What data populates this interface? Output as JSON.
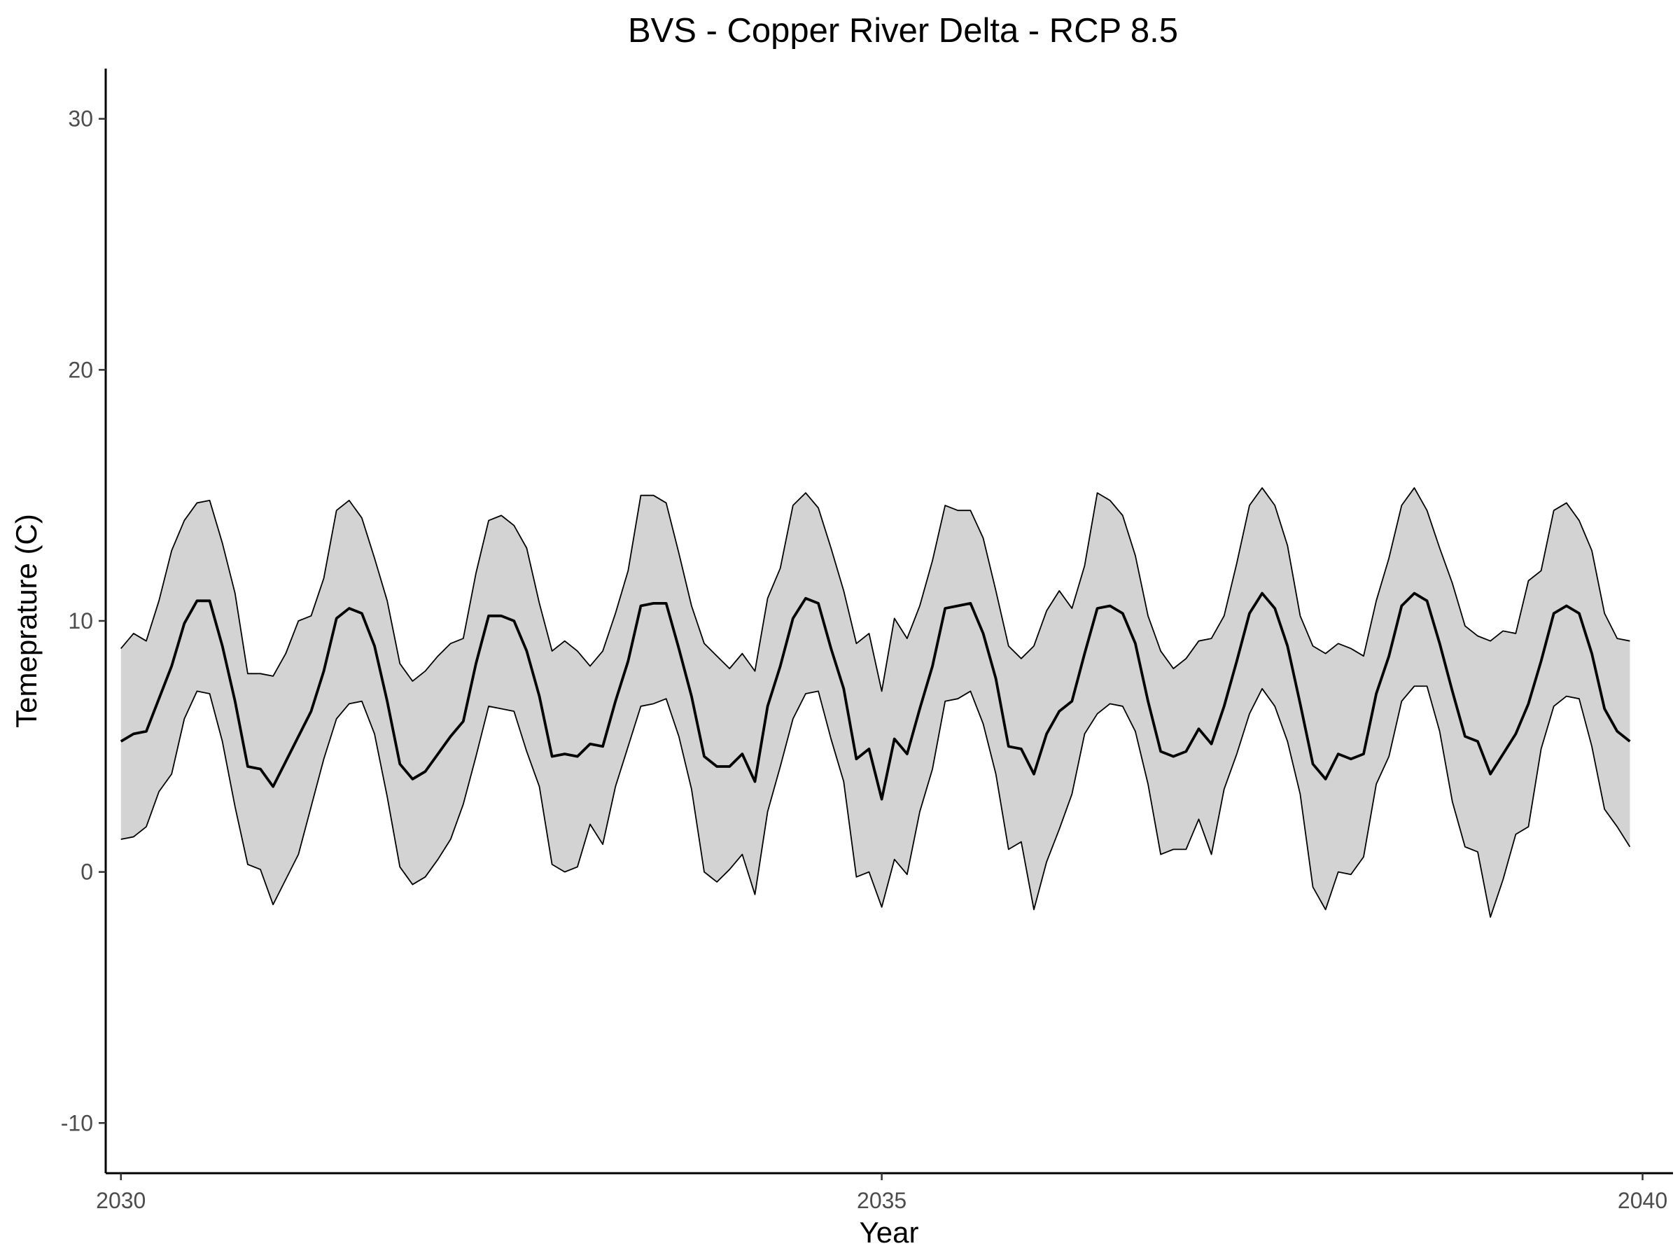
{
  "chart_data": {
    "type": "area",
    "title": "BVS - Copper River Delta - RCP 8.5",
    "xlabel": "Year",
    "ylabel": "Temeprature (C)",
    "xlim": [
      2029.9,
      2040.2
    ],
    "ylim": [
      -12,
      32
    ],
    "x_ticks": [
      2030,
      2035,
      2040
    ],
    "y_ticks": [
      -10,
      0,
      10,
      20,
      30
    ],
    "x_tick_labels": [
      "2030",
      "2035",
      "2040"
    ],
    "y_tick_labels": [
      "-10",
      "0",
      "10",
      "20",
      "30"
    ],
    "grid": false,
    "legend": "none",
    "colors": {
      "band": "#d3d3d3",
      "line": "#000000"
    },
    "x_start_year": 2030,
    "x_step_years": 0.083333,
    "series": [
      {
        "role": "mean",
        "values": [
          5.2,
          5.5,
          5.6,
          6.9,
          8.2,
          9.9,
          10.8,
          10.8,
          9.0,
          6.8,
          4.2,
          4.1,
          3.4,
          4.4,
          5.4,
          6.4,
          8.0,
          10.1,
          10.5,
          10.3,
          9.0,
          6.8,
          4.3,
          3.7,
          4.0,
          4.7,
          5.4,
          6.0,
          8.3,
          10.2,
          10.2,
          10.0,
          8.8,
          7.0,
          4.6,
          4.7,
          4.6,
          5.1,
          5.0,
          6.8,
          8.4,
          10.6,
          10.7,
          10.7,
          8.9,
          7.0,
          4.6,
          4.2,
          4.2,
          4.7,
          3.6,
          6.6,
          8.2,
          10.1,
          10.9,
          10.7,
          8.9,
          7.3,
          4.5,
          4.9,
          2.9,
          5.3,
          4.7,
          6.5,
          8.2,
          10.5,
          10.6,
          10.7,
          9.5,
          7.7,
          5.0,
          4.9,
          3.9,
          5.5,
          6.4,
          6.8,
          8.7,
          10.5,
          10.6,
          10.3,
          9.1,
          6.8,
          4.8,
          4.6,
          4.8,
          5.7,
          5.1,
          6.6,
          8.4,
          10.3,
          11.1,
          10.5,
          9.0,
          6.7,
          4.3,
          3.7,
          4.7,
          4.5,
          4.7,
          7.1,
          8.6,
          10.6,
          11.1,
          10.8,
          9.1,
          7.2,
          5.4,
          5.2,
          3.9,
          4.7,
          5.5,
          6.7,
          8.4,
          10.3,
          10.6,
          10.3,
          8.7,
          6.5,
          5.6,
          5.2
        ]
      },
      {
        "role": "upper",
        "values": [
          8.9,
          9.5,
          9.2,
          10.8,
          12.8,
          14.0,
          14.7,
          14.8,
          13.1,
          11.1,
          7.9,
          7.9,
          7.8,
          8.7,
          10.0,
          10.2,
          11.7,
          14.4,
          14.8,
          14.1,
          12.5,
          10.8,
          8.3,
          7.6,
          8.0,
          8.6,
          9.1,
          9.3,
          11.9,
          14.0,
          14.2,
          13.8,
          12.9,
          10.7,
          8.8,
          9.2,
          8.8,
          8.2,
          8.8,
          10.3,
          12.0,
          15.0,
          15.0,
          14.7,
          12.7,
          10.6,
          9.1,
          8.6,
          8.1,
          8.7,
          8.0,
          10.9,
          12.1,
          14.6,
          15.1,
          14.5,
          12.9,
          11.2,
          9.1,
          9.5,
          7.2,
          10.1,
          9.3,
          10.6,
          12.4,
          14.6,
          14.4,
          14.4,
          13.3,
          11.2,
          9.0,
          8.5,
          9.0,
          10.4,
          11.2,
          10.5,
          12.2,
          15.1,
          14.8,
          14.2,
          12.6,
          10.2,
          8.8,
          8.1,
          8.5,
          9.2,
          9.3,
          10.2,
          12.3,
          14.6,
          15.3,
          14.6,
          13.0,
          10.2,
          9.0,
          8.7,
          9.1,
          8.9,
          8.6,
          10.8,
          12.5,
          14.6,
          15.3,
          14.4,
          12.9,
          11.5,
          9.8,
          9.4,
          9.2,
          9.6,
          9.5,
          11.6,
          12.0,
          14.4,
          14.7,
          14.0,
          12.8,
          10.3,
          9.3,
          9.2
        ]
      },
      {
        "role": "lower",
        "values": [
          1.3,
          1.4,
          1.8,
          3.2,
          3.9,
          6.1,
          7.2,
          7.1,
          5.2,
          2.6,
          0.3,
          0.1,
          -1.3,
          -0.3,
          0.7,
          2.6,
          4.5,
          6.1,
          6.7,
          6.8,
          5.5,
          3.0,
          0.2,
          -0.5,
          -0.2,
          0.5,
          1.3,
          2.7,
          4.6,
          6.6,
          6.5,
          6.4,
          4.8,
          3.4,
          0.3,
          0.0,
          0.2,
          1.9,
          1.1,
          3.4,
          5.0,
          6.6,
          6.7,
          6.9,
          5.4,
          3.3,
          0.0,
          -0.4,
          0.1,
          0.7,
          -0.9,
          2.4,
          4.2,
          6.1,
          7.1,
          7.2,
          5.3,
          3.6,
          -0.2,
          0.0,
          -1.4,
          0.5,
          -0.1,
          2.4,
          4.1,
          6.8,
          6.9,
          7.2,
          5.9,
          3.9,
          0.9,
          1.2,
          -1.5,
          0.4,
          1.7,
          3.1,
          5.5,
          6.3,
          6.7,
          6.6,
          5.6,
          3.5,
          0.7,
          0.9,
          0.9,
          2.1,
          0.7,
          3.3,
          4.7,
          6.3,
          7.3,
          6.6,
          5.2,
          3.1,
          -0.6,
          -1.5,
          0.0,
          -0.1,
          0.6,
          3.5,
          4.6,
          6.8,
          7.4,
          7.4,
          5.6,
          2.8,
          1.0,
          0.8,
          -1.8,
          -0.3,
          1.5,
          1.8,
          4.9,
          6.6,
          7.0,
          6.9,
          5.0,
          2.5,
          1.8,
          1.0
        ]
      }
    ]
  }
}
